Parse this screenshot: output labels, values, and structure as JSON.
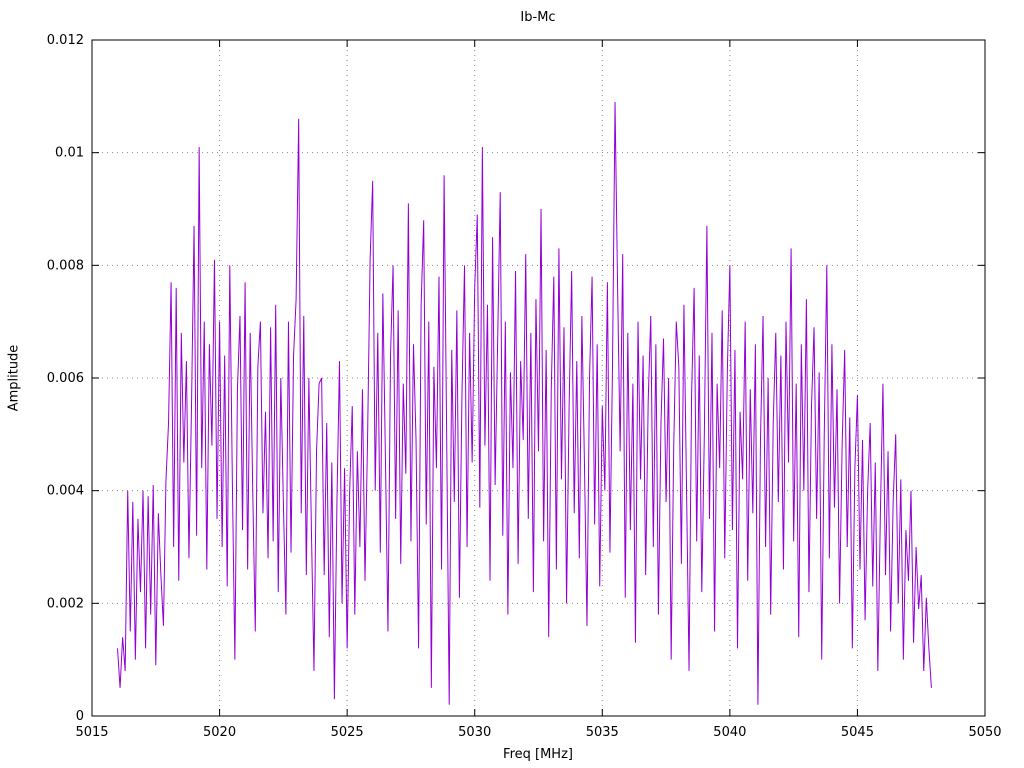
{
  "title": "Ib-Mc",
  "axes": {
    "xlabel": "Freq [MHz]",
    "ylabel": "Amplitude"
  },
  "chart_data": {
    "type": "line",
    "title": "Ib-Mc",
    "xlabel": "Freq [MHz]",
    "ylabel": "Amplitude",
    "xlim": [
      5015,
      5050
    ],
    "ylim": [
      0,
      0.012
    ],
    "x_ticks": [
      5015,
      5020,
      5025,
      5030,
      5035,
      5040,
      5045,
      5050
    ],
    "x_tick_labels": [
      "5015",
      "5020",
      "5025",
      "5030",
      "5035",
      "5040",
      "5045",
      "5050"
    ],
    "y_ticks": [
      0,
      0.002,
      0.004,
      0.006,
      0.008,
      0.01,
      0.012
    ],
    "y_tick_labels": [
      "0",
      "0.002",
      "0.004",
      "0.006",
      "0.008",
      "0.01",
      "0.012"
    ],
    "grid": true,
    "legend": "none",
    "line_color": "#9400d3",
    "x_start": 5016.0,
    "x_step": 0.1,
    "values": [
      0.0012,
      0.0005,
      0.0014,
      0.0008,
      0.004,
      0.0015,
      0.0038,
      0.001,
      0.0035,
      0.0022,
      0.004,
      0.0012,
      0.0039,
      0.0018,
      0.0041,
      0.0009,
      0.0036,
      0.0025,
      0.0016,
      0.0042,
      0.0052,
      0.0077,
      0.003,
      0.0076,
      0.0024,
      0.0068,
      0.0045,
      0.0063,
      0.0028,
      0.0055,
      0.0087,
      0.0032,
      0.0101,
      0.0044,
      0.007,
      0.0026,
      0.0066,
      0.0048,
      0.0081,
      0.0035,
      0.007,
      0.003,
      0.0064,
      0.0023,
      0.008,
      0.0042,
      0.001,
      0.0058,
      0.0071,
      0.0033,
      0.0077,
      0.0026,
      0.0068,
      0.004,
      0.0015,
      0.0062,
      0.007,
      0.0036,
      0.0054,
      0.0028,
      0.0069,
      0.0031,
      0.0073,
      0.0022,
      0.006,
      0.0038,
      0.0018,
      0.007,
      0.0029,
      0.0064,
      0.0074,
      0.0106,
      0.0036,
      0.0071,
      0.0025,
      0.006,
      0.0033,
      0.0008,
      0.0047,
      0.0059,
      0.006,
      0.0025,
      0.0052,
      0.0014,
      0.0045,
      0.0003,
      0.0038,
      0.0063,
      0.002,
      0.0044,
      0.0012,
      0.004,
      0.0055,
      0.0018,
      0.0047,
      0.003,
      0.0058,
      0.0024,
      0.0049,
      0.0081,
      0.0095,
      0.004,
      0.0068,
      0.0029,
      0.0075,
      0.0046,
      0.0015,
      0.0064,
      0.008,
      0.0035,
      0.0072,
      0.0027,
      0.0059,
      0.0043,
      0.0091,
      0.0031,
      0.0066,
      0.0049,
      0.0012,
      0.0073,
      0.0088,
      0.0034,
      0.007,
      0.0005,
      0.0062,
      0.0044,
      0.0078,
      0.0026,
      0.0096,
      0.005,
      0.0002,
      0.0065,
      0.0038,
      0.0072,
      0.0021,
      0.0057,
      0.008,
      0.003,
      0.0068,
      0.0045,
      0.0076,
      0.0089,
      0.0037,
      0.0101,
      0.0048,
      0.0073,
      0.0024,
      0.0085,
      0.0041,
      0.0067,
      0.0093,
      0.0032,
      0.007,
      0.0018,
      0.0061,
      0.0044,
      0.0079,
      0.0027,
      0.0063,
      0.0049,
      0.0082,
      0.0035,
      0.0068,
      0.0022,
      0.0074,
      0.0047,
      0.009,
      0.0031,
      0.0065,
      0.0014,
      0.0058,
      0.0078,
      0.0026,
      0.0083,
      0.0042,
      0.0069,
      0.002,
      0.0055,
      0.0079,
      0.0036,
      0.0063,
      0.0028,
      0.0071,
      0.0045,
      0.0016,
      0.006,
      0.0078,
      0.0034,
      0.0066,
      0.0023,
      0.0055,
      0.004,
      0.0077,
      0.0029,
      0.0062,
      0.0109,
      0.0076,
      0.0047,
      0.0082,
      0.0021,
      0.0068,
      0.0033,
      0.0059,
      0.0013,
      0.007,
      0.0042,
      0.0064,
      0.0025,
      0.0056,
      0.0071,
      0.003,
      0.0066,
      0.0018,
      0.0052,
      0.0067,
      0.0038,
      0.006,
      0.001,
      0.0048,
      0.007,
      0.0062,
      0.0027,
      0.0073,
      0.0041,
      0.0008,
      0.0057,
      0.0076,
      0.0031,
      0.0064,
      0.0022,
      0.005,
      0.0087,
      0.0035,
      0.0068,
      0.0015,
      0.0059,
      0.0044,
      0.0072,
      0.0028,
      0.0061,
      0.008,
      0.0033,
      0.0065,
      0.0012,
      0.0054,
      0.0042,
      0.007,
      0.0024,
      0.0058,
      0.0036,
      0.0066,
      0.0002,
      0.0049,
      0.0071,
      0.003,
      0.006,
      0.0018,
      0.0052,
      0.0068,
      0.0038,
      0.0064,
      0.0026,
      0.007,
      0.0045,
      0.0083,
      0.0031,
      0.0059,
      0.0014,
      0.0066,
      0.004,
      0.0074,
      0.0022,
      0.0055,
      0.0069,
      0.0035,
      0.0061,
      0.001,
      0.005,
      0.008,
      0.0028,
      0.0066,
      0.0037,
      0.0058,
      0.002,
      0.0048,
      0.0065,
      0.003,
      0.0053,
      0.0012,
      0.0044,
      0.0057,
      0.0026,
      0.0049,
      0.0017,
      0.004,
      0.0052,
      0.0023,
      0.0045,
      0.0008,
      0.0036,
      0.0059,
      0.0025,
      0.0047,
      0.0015,
      0.0038,
      0.005,
      0.002,
      0.0042,
      0.001,
      0.0033,
      0.0024,
      0.004,
      0.0013,
      0.003,
      0.0019,
      0.0025,
      0.0008,
      0.0021,
      0.0012,
      0.0005
    ]
  }
}
